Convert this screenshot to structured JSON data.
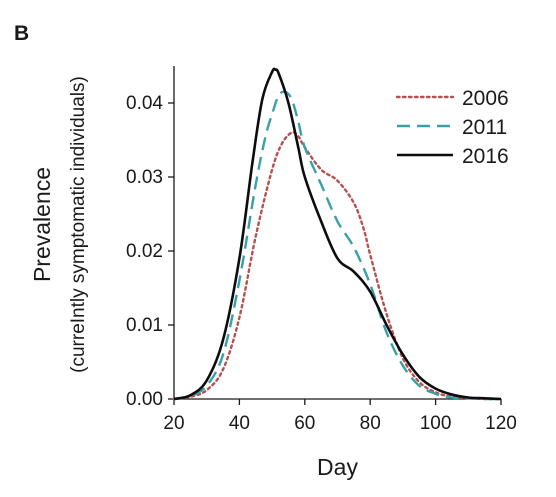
{
  "panel_label": "B",
  "chart_data": {
    "type": "line",
    "xlabel": "Day",
    "ylabel": "Prevalence",
    "ylabel_sub": "(curreIntly symptomatic individuals)",
    "xlim": [
      20,
      120
    ],
    "ylim": [
      0,
      0.045
    ],
    "xticks": [
      20,
      40,
      60,
      80,
      100,
      120
    ],
    "yticks": [
      0.0,
      0.01,
      0.02,
      0.03,
      0.04
    ],
    "ytick_labels": [
      "0.00",
      "0.01",
      "0.02",
      "0.03",
      "0.04"
    ],
    "legend_position": "top-right",
    "series": [
      {
        "name": "2006",
        "color": "#b5514f",
        "style": "dotted",
        "x": [
          20,
          25,
          30,
          35,
          40,
          45,
          50,
          53,
          56,
          58,
          60,
          65,
          70,
          75,
          78,
          80,
          85,
          90,
          95,
          100,
          105,
          110,
          115,
          120
        ],
        "y": [
          0.0,
          0.0003,
          0.0012,
          0.004,
          0.011,
          0.022,
          0.031,
          0.0345,
          0.036,
          0.0355,
          0.034,
          0.031,
          0.0295,
          0.0265,
          0.023,
          0.0195,
          0.0115,
          0.0055,
          0.0023,
          0.0009,
          0.0003,
          0.0001,
          0.0,
          0.0
        ]
      },
      {
        "name": "2011",
        "color": "#3aa0a8",
        "style": "dashed",
        "x": [
          20,
          25,
          30,
          35,
          40,
          45,
          48,
          50,
          52,
          54,
          56,
          58,
          60,
          65,
          70,
          75,
          80,
          85,
          90,
          95,
          100,
          105,
          110,
          115,
          120
        ],
        "y": [
          0.0,
          0.0004,
          0.0018,
          0.006,
          0.016,
          0.029,
          0.0355,
          0.0385,
          0.041,
          0.0415,
          0.0405,
          0.0375,
          0.034,
          0.029,
          0.024,
          0.0205,
          0.0155,
          0.009,
          0.0045,
          0.0018,
          0.0007,
          0.0002,
          0.0001,
          0.0,
          0.0
        ]
      },
      {
        "name": "2016",
        "color": "#0d0d0d",
        "style": "solid",
        "x": [
          20,
          25,
          30,
          35,
          40,
          44,
          47,
          50,
          51,
          52,
          55,
          58,
          60,
          65,
          70,
          75,
          80,
          85,
          90,
          95,
          100,
          105,
          110,
          115,
          120
        ],
        "y": [
          0.0,
          0.0005,
          0.0025,
          0.008,
          0.019,
          0.032,
          0.0405,
          0.0442,
          0.0445,
          0.044,
          0.04,
          0.034,
          0.03,
          0.024,
          0.019,
          0.0172,
          0.0145,
          0.01,
          0.006,
          0.003,
          0.0014,
          0.0006,
          0.0002,
          0.0001,
          0.0
        ]
      }
    ]
  }
}
